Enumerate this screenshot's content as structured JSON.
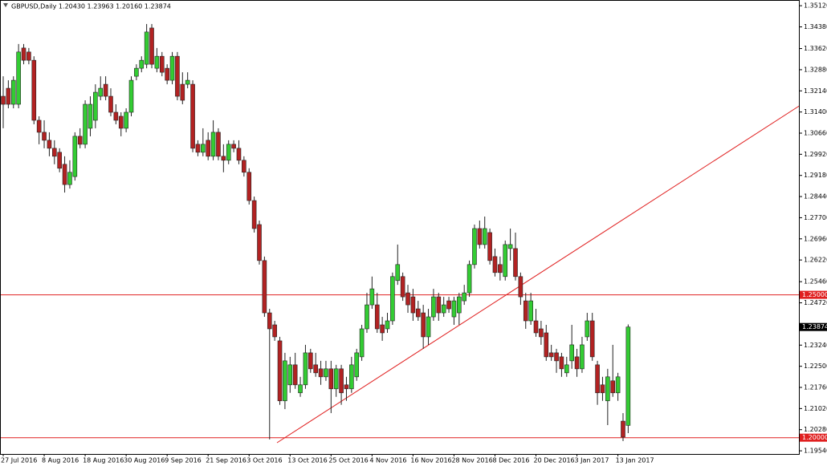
{
  "chart_data": {
    "type": "candlestick",
    "title": "GBPUSD,Daily 1.20430 1.23963 1.20160 1.23874",
    "categories": [
      "27 Jul 2016",
      null,
      null,
      null,
      null,
      null,
      null,
      null,
      "8 Aug 2016",
      null,
      null,
      null,
      null,
      null,
      null,
      null,
      "18 Aug 2016",
      null,
      null,
      null,
      null,
      null,
      null,
      null,
      "30 Aug 2016",
      null,
      null,
      null,
      null,
      null,
      null,
      null,
      "9 Sep 2016",
      null,
      null,
      null,
      null,
      null,
      null,
      null,
      "21 Sep 2016",
      null,
      null,
      null,
      null,
      null,
      null,
      null,
      "3 Oct 2016",
      null,
      null,
      null,
      null,
      null,
      null,
      null,
      "13 Oct 2016",
      null,
      null,
      null,
      null,
      null,
      null,
      null,
      "25 Oct 2016",
      null,
      null,
      null,
      null,
      null,
      null,
      null,
      "4 Nov 2016",
      null,
      null,
      null,
      null,
      null,
      null,
      null,
      "16 Nov 2016",
      null,
      null,
      null,
      null,
      null,
      null,
      null,
      "28 Nov 2016",
      null,
      null,
      null,
      null,
      null,
      null,
      null,
      "8 Dec 2016",
      null,
      null,
      null,
      null,
      null,
      null,
      null,
      "20 Dec 2016",
      null,
      null,
      null,
      null,
      null,
      null,
      null,
      "3 Jan 2017",
      null,
      null,
      null,
      null,
      null,
      null,
      null,
      "13 Jan 2017",
      null,
      null
    ],
    "open": [
      1.3195,
      1.3223,
      1.3167,
      1.3167,
      1.3364,
      1.335,
      1.3321,
      1.3111,
      1.3069,
      1.3041,
      1.3013,
      1.2999,
      1.2957,
      1.2886,
      1.2914,
      1.3055,
      1.3027,
      1.3083,
      1.3111,
      1.3195,
      1.3237,
      1.3195,
      1.3139,
      1.3125,
      1.3083,
      1.3139,
      1.3265,
      1.3293,
      1.3307,
      1.3434,
      1.3293,
      1.3335,
      1.3293,
      1.3251,
      1.3335,
      1.3237,
      1.3237,
      1.3237,
      1.3027,
      1.2999,
      1.3041,
      1.2985,
      1.3069,
      1.2985,
      1.2971,
      1.3027,
      1.3013,
      1.2971,
      1.2929,
      1.283,
      1.2746,
      1.262,
      1.2437,
      1.2395,
      1.2339,
      1.2129,
      1.2185,
      1.2255,
      1.2157,
      1.2185,
      1.2297,
      1.2255,
      1.2241,
      1.2213,
      1.2241,
      1.2171,
      1.2241,
      1.2185,
      1.2171,
      1.2213,
      1.2283,
      1.2381,
      1.2465,
      1.2465,
      1.2395,
      1.2381,
      1.2409,
      1.255,
      1.2564,
      1.2507,
      1.2493,
      1.2451,
      1.2437,
      1.2353,
      1.2423,
      1.2493,
      1.2437,
      1.2479,
      1.2423,
      1.2437,
      1.2479,
      1.2507,
      1.2606,
      1.2732,
      1.2676,
      1.2718,
      1.2634,
      1.2606,
      1.2564,
      1.2662,
      1.2662,
      1.2564,
      1.2479,
      1.2409,
      1.2409,
      1.2381,
      1.2367,
      1.2297,
      1.2297,
      1.2283,
      1.2227,
      1.2269,
      1.2283,
      1.2241,
      1.2353,
      1.2409,
      1.2255,
      1.2185,
      1.2129,
      1.2199,
      1.2157,
      1.2058,
      1.2043
    ],
    "high": [
      1.3265,
      1.3251,
      1.3265,
      1.3378,
      1.3378,
      1.3364,
      1.3335,
      1.3125,
      1.3111,
      1.3069,
      1.3041,
      1.3013,
      1.2985,
      1.2971,
      1.3069,
      1.3083,
      1.3181,
      1.3195,
      1.3237,
      1.3265,
      1.3265,
      1.3223,
      1.3167,
      1.3139,
      1.3153,
      1.3265,
      1.3307,
      1.3335,
      1.3448,
      1.3448,
      1.3364,
      1.335,
      1.3307,
      1.335,
      1.335,
      1.3279,
      1.3279,
      1.3251,
      1.3041,
      1.3083,
      1.3069,
      1.3111,
      1.3083,
      1.3027,
      1.3041,
      1.3041,
      1.3041,
      1.2985,
      1.2943,
      1.2844,
      1.276,
      1.2634,
      1.2451,
      1.2409,
      1.2353,
      1.2297,
      1.2283,
      1.2297,
      1.2213,
      1.2325,
      1.2311,
      1.2297,
      1.2269,
      1.2269,
      1.2269,
      1.2255,
      1.2255,
      1.2213,
      1.2283,
      1.2311,
      1.2395,
      1.2507,
      1.2564,
      1.2507,
      1.2423,
      1.2437,
      1.2578,
      1.2676,
      1.2578,
      1.2535,
      1.2521,
      1.2479,
      1.2465,
      1.2451,
      1.2521,
      1.2507,
      1.2493,
      1.2493,
      1.2493,
      1.2507,
      1.2535,
      1.262,
      1.2746,
      1.276,
      1.2774,
      1.2732,
      1.2662,
      1.2634,
      1.269,
      1.2732,
      1.2718,
      1.2578,
      1.2507,
      1.2507,
      1.2451,
      1.2409,
      1.2395,
      1.2325,
      1.2311,
      1.2297,
      1.2283,
      1.2395,
      1.2311,
      1.2353,
      1.2437,
      1.2437,
      1.2269,
      1.2213,
      1.2241,
      1.2325,
      1.2227,
      1.2086,
      1.23963
    ],
    "low": [
      1.3083,
      1.3153,
      1.3153,
      1.3153,
      1.3307,
      1.3307,
      1.3097,
      1.3027,
      1.3013,
      1.2985,
      1.2957,
      1.2929,
      1.2858,
      1.2872,
      1.29,
      1.3013,
      1.3013,
      1.3055,
      1.3083,
      1.3181,
      1.3181,
      1.3125,
      1.3097,
      1.3055,
      1.3069,
      1.3125,
      1.3251,
      1.3279,
      1.3293,
      1.3293,
      1.3279,
      1.3265,
      1.3237,
      1.3237,
      1.3181,
      1.3167,
      1.3223,
      1.2999,
      1.2985,
      1.2985,
      1.2971,
      1.2971,
      1.2971,
      1.2929,
      1.2957,
      1.2999,
      1.2957,
      1.2914,
      1.2816,
      1.2718,
      1.2606,
      1.2423,
      1.1994,
      1.2339,
      1.2115,
      1.21,
      1.2157,
      1.2171,
      1.2143,
      1.2171,
      1.2227,
      1.2213,
      1.2185,
      1.2199,
      1.2086,
      1.2143,
      1.2115,
      1.2129,
      1.2157,
      1.2199,
      1.2269,
      1.2367,
      1.2451,
      1.2367,
      1.2339,
      1.2367,
      1.2395,
      1.2535,
      1.2479,
      1.2437,
      1.2409,
      1.2409,
      1.2311,
      1.2325,
      1.2409,
      1.2409,
      1.2423,
      1.2437,
      1.2395,
      1.2395,
      1.2465,
      1.2493,
      1.2592,
      1.2662,
      1.2662,
      1.2606,
      1.2564,
      1.255,
      1.255,
      1.262,
      1.255,
      1.2465,
      1.2381,
      1.2395,
      1.2353,
      1.2325,
      1.2269,
      1.2269,
      1.2227,
      1.2213,
      1.2213,
      1.2241,
      1.2213,
      1.2227,
      1.2339,
      1.2269,
      1.2115,
      1.2129,
      1.2044,
      1.2143,
      1.2129,
      1.1988,
      1.2016
    ],
    "close": [
      1.3167,
      1.3167,
      1.3251,
      1.335,
      1.3321,
      1.3321,
      1.3111,
      1.3069,
      1.3041,
      1.3013,
      1.2985,
      1.2943,
      1.2886,
      1.2929,
      1.3055,
      1.3027,
      1.3167,
      1.3167,
      1.3209,
      1.3223,
      1.3195,
      1.3139,
      1.3111,
      1.3083,
      1.3139,
      1.3251,
      1.3293,
      1.3321,
      1.342,
      1.3307,
      1.3335,
      1.3279,
      1.3251,
      1.3335,
      1.3195,
      1.3181,
      1.3251,
      1.3013,
      1.2999,
      1.3027,
      1.2985,
      1.3069,
      1.2985,
      1.2971,
      1.3027,
      1.3013,
      1.2971,
      1.2929,
      1.283,
      1.2732,
      1.262,
      1.2437,
      1.2381,
      1.2353,
      1.2129,
      1.2269,
      1.2255,
      1.2185,
      1.2185,
      1.2297,
      1.2241,
      1.2227,
      1.2213,
      1.2241,
      1.2171,
      1.2241,
      1.2157,
      1.2171,
      1.2255,
      1.2297,
      1.2381,
      1.2465,
      1.2521,
      1.2381,
      1.2367,
      1.2409,
      1.2564,
      1.2606,
      1.2493,
      1.2465,
      1.2437,
      1.2423,
      1.2353,
      1.2423,
      1.2493,
      1.2437,
      1.2465,
      1.2451,
      1.2479,
      1.2493,
      1.2507,
      1.2606,
      1.2732,
      1.2676,
      1.2732,
      1.262,
      1.2578,
      1.2578,
      1.2676,
      1.2676,
      1.2564,
      1.2493,
      1.2409,
      1.2479,
      1.2367,
      1.2353,
      1.2283,
      1.2283,
      1.2269,
      1.2241,
      1.2255,
      1.2325,
      1.2241,
      1.2325,
      1.2409,
      1.2283,
      1.2157,
      1.2157,
      1.2213,
      1.2157,
      1.2213,
      1.2002,
      1.23874
    ],
    "up_color": "#33cc33",
    "down_color": "#b22222",
    "ylim": [
      1.1943,
      1.3532
    ],
    "yticks": [
      {
        "value": 1.3512,
        "label": "1.35120"
      },
      {
        "value": 1.3438,
        "label": "1.34380"
      },
      {
        "value": 1.3362,
        "label": "1.33620"
      },
      {
        "value": 1.3288,
        "label": "1.32880"
      },
      {
        "value": 1.3214,
        "label": "1.32140"
      },
      {
        "value": 1.314,
        "label": "1.31400"
      },
      {
        "value": 1.3066,
        "label": "1.30660"
      },
      {
        "value": 1.2992,
        "label": "1.29920"
      },
      {
        "value": 1.2918,
        "label": "1.29180"
      },
      {
        "value": 1.2844,
        "label": "1.28440"
      },
      {
        "value": 1.277,
        "label": "1.27700"
      },
      {
        "value": 1.2696,
        "label": "1.26960"
      },
      {
        "value": 1.2622,
        "label": "1.26220"
      },
      {
        "value": 1.2546,
        "label": "1.25460"
      },
      {
        "value": 1.2472,
        "label": "1.24720"
      },
      {
        "value": 1.2324,
        "label": "1.23240"
      },
      {
        "value": 1.225,
        "label": "1.22500"
      },
      {
        "value": 1.2176,
        "label": "1.21760"
      },
      {
        "value": 1.2102,
        "label": "1.21020"
      },
      {
        "value": 1.2028,
        "label": "1.20280"
      },
      {
        "value": 1.1954,
        "label": "1.19540"
      }
    ],
    "hlines": [
      {
        "value": 1.25,
        "label": "1.25000"
      },
      {
        "value": 1.2,
        "label": "1.20000"
      }
    ],
    "hline_color": "#e02020"
  }
}
